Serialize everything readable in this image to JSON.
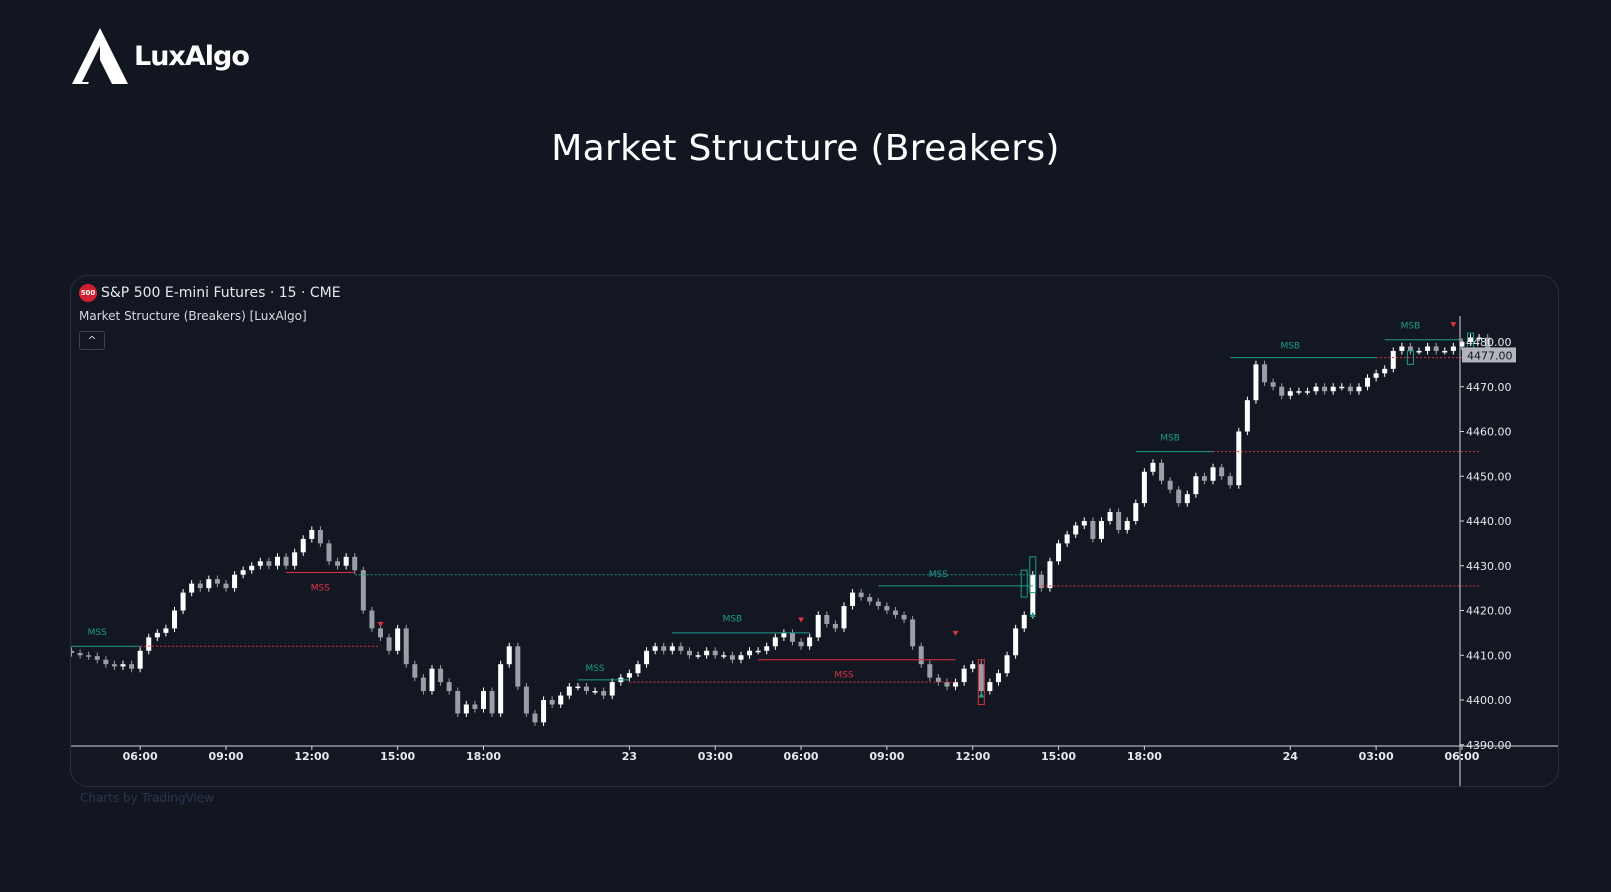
{
  "logo": {
    "text": "LuxAlgo"
  },
  "page": {
    "title": "Market Structure (Breakers)"
  },
  "header": {
    "badge": "500",
    "symbol_title": "S&P 500 E-mini Futures · 15 · CME",
    "indicator": "Market Structure (Breakers) [LuxAlgo]",
    "collapse_glyph": "^"
  },
  "footer": {
    "attribution": "Charts by TradingView"
  },
  "colors": {
    "background": "#131722",
    "bull": "#ffffff",
    "bear": "#9b9ea6",
    "teal": "#1c9c8c",
    "red": "#e0313f",
    "axis_text": "#e6e8ee"
  },
  "chart_data": {
    "type": "candlestick",
    "title": "",
    "ylim": [
      4389,
      4480
    ],
    "y_ticks": [
      4480,
      4470,
      4460,
      4450,
      4440,
      4430,
      4420,
      4410,
      4400,
      4390
    ],
    "y_tick_labels": [
      "4480.00",
      "4470.00",
      "4460.00",
      "4450.00",
      "4440.00",
      "4430.00",
      "4420.00",
      "4410.00",
      "4400.00",
      "4390.00"
    ],
    "x_ticks": [
      {
        "bar": 8,
        "label": "06:00"
      },
      {
        "bar": 18,
        "label": "09:00"
      },
      {
        "bar": 28,
        "label": "12:00"
      },
      {
        "bar": 38,
        "label": "15:00"
      },
      {
        "bar": 48,
        "label": "18:00"
      },
      {
        "bar": 65,
        "label": "23"
      },
      {
        "bar": 75,
        "label": "03:00"
      },
      {
        "bar": 85,
        "label": "06:00"
      },
      {
        "bar": 95,
        "label": "09:00"
      },
      {
        "bar": 105,
        "label": "12:00"
      },
      {
        "bar": 115,
        "label": "15:00"
      },
      {
        "bar": 125,
        "label": "18:00"
      },
      {
        "bar": 142,
        "label": "24"
      },
      {
        "bar": 152,
        "label": "03:00"
      },
      {
        "bar": 162,
        "label": "06:00"
      }
    ],
    "last_price": "4477.00",
    "close": [
      4410.5,
      4410,
      4409.8,
      4409,
      4408,
      4407.5,
      4408,
      4407,
      4411,
      4414,
      4415,
      4416,
      4420,
      4424,
      4426,
      4425,
      4427,
      4426,
      4425,
      4428,
      4429,
      4430,
      4431,
      4430,
      4432,
      4430,
      4433,
      4436,
      4438,
      4435,
      4431,
      4430,
      4432,
      4429,
      4420,
      4416,
      4414,
      4411,
      4416,
      4408,
      4405,
      4402,
      4407,
      4404,
      4402,
      4397,
      4399,
      4398,
      4402,
      4397,
      4408,
      4412,
      4403,
      4397,
      4395,
      4400,
      4399,
      4401,
      4403,
      4403,
      4402,
      4402,
      4401,
      4404,
      4405,
      4406,
      4408,
      4411,
      4412,
      4411,
      4412,
      4411,
      4410,
      4410,
      4411,
      4410,
      4410,
      4409,
      4410,
      4411,
      4411,
      4412,
      4414,
      4415,
      4413,
      4412,
      4414,
      4419,
      4417,
      4416,
      4421,
      4424,
      4423,
      4422,
      4421,
      4420,
      4419,
      4418,
      4412,
      4408,
      4405,
      4404,
      4403,
      4404,
      4407,
      4408,
      4402,
      4404,
      4406,
      4410,
      4416,
      4419,
      4428,
      4425,
      4431,
      4435,
      4437,
      4439,
      4440,
      4436,
      4440,
      4442,
      4438,
      4440,
      4444,
      4451,
      4453,
      4449,
      4447,
      4444,
      4446,
      4450,
      4449,
      4452,
      4450,
      4448,
      4460,
      4467,
      4475,
      4471,
      4470,
      4468,
      4469,
      4469,
      4469,
      4470,
      4469,
      4470,
      4470,
      4469,
      4470,
      4472,
      4473,
      4474,
      4478,
      4479,
      4478,
      4478,
      4479,
      4478,
      4478,
      4479,
      4480,
      4481,
      4481,
      4477,
      4477
    ]
  },
  "annotations": {
    "labels": [
      {
        "text": "MSS",
        "bar": 3,
        "price": 4414.5,
        "kind": "teal"
      },
      {
        "text": "MSS",
        "bar": 29,
        "price": 4424.5,
        "kind": "red"
      },
      {
        "text": "MSS",
        "bar": 61,
        "price": 4406.5,
        "kind": "teal"
      },
      {
        "text": "MSB",
        "bar": 77,
        "price": 4417.5,
        "kind": "teal"
      },
      {
        "text": "MSS",
        "bar": 90,
        "price": 4405,
        "kind": "red"
      },
      {
        "text": "MSS",
        "bar": 101,
        "price": 4427.5,
        "kind": "teal"
      },
      {
        "text": "MSB",
        "bar": 128,
        "price": 4458,
        "kind": "teal"
      },
      {
        "text": "MSB",
        "bar": 142,
        "price": 4478.5,
        "kind": "teal"
      },
      {
        "text": "MSB",
        "bar": 156,
        "price": 4483,
        "kind": "teal"
      }
    ],
    "solid_lines": [
      {
        "from": 0,
        "to": 8,
        "price": 4412,
        "kind": "teal"
      },
      {
        "from": 25,
        "to": 33,
        "price": 4428.5,
        "kind": "red"
      },
      {
        "from": 59,
        "to": 65,
        "price": 4404.5,
        "kind": "teal"
      },
      {
        "from": 70,
        "to": 86,
        "price": 4415,
        "kind": "teal"
      },
      {
        "from": 80,
        "to": 103,
        "price": 4409,
        "kind": "red"
      },
      {
        "from": 94,
        "to": 112,
        "price": 4425.5,
        "kind": "teal"
      },
      {
        "from": 124,
        "to": 133,
        "price": 4455.5,
        "kind": "teal"
      },
      {
        "from": 135,
        "to": 152,
        "price": 4476.5,
        "kind": "teal"
      },
      {
        "from": 153,
        "to": 162,
        "price": 4480.5,
        "kind": "teal"
      }
    ],
    "dotted_lines": [
      {
        "from": 8,
        "to": 36,
        "price": 4412,
        "kind": "red"
      },
      {
        "from": 33,
        "to": 112,
        "price": 4428,
        "kind": "teal"
      },
      {
        "from": 65,
        "to": 103,
        "price": 4404,
        "kind": "red"
      },
      {
        "from": 113,
        "to": 164,
        "price": 4425.5,
        "kind": "red"
      },
      {
        "from": 133,
        "to": 164,
        "price": 4455.5,
        "kind": "red"
      },
      {
        "from": 152,
        "to": 162,
        "price": 4476.5,
        "kind": "red"
      }
    ],
    "markers": [
      {
        "bar": 36,
        "price": 4417,
        "dir": "down"
      },
      {
        "bar": 85,
        "price": 4418,
        "dir": "down"
      },
      {
        "bar": 103,
        "price": 4415,
        "dir": "down"
      },
      {
        "bar": 161,
        "price": 4484,
        "dir": "down"
      },
      {
        "bar": 106,
        "price": 4401,
        "dir": "up"
      },
      {
        "bar": 112,
        "price": 4419,
        "dir": "up"
      }
    ],
    "boxes": [
      {
        "bar": 106,
        "top": 4409,
        "bottom": 4399,
        "kind": "red"
      },
      {
        "bar": 111,
        "top": 4429,
        "bottom": 4423,
        "kind": "teal"
      },
      {
        "bar": 112,
        "top": 4432,
        "bottom": 4424,
        "kind": "teal"
      },
      {
        "bar": 156,
        "top": 4478,
        "bottom": 4475,
        "kind": "teal"
      },
      {
        "bar": 163,
        "top": 4482,
        "bottom": 4476,
        "kind": "teal"
      }
    ]
  }
}
